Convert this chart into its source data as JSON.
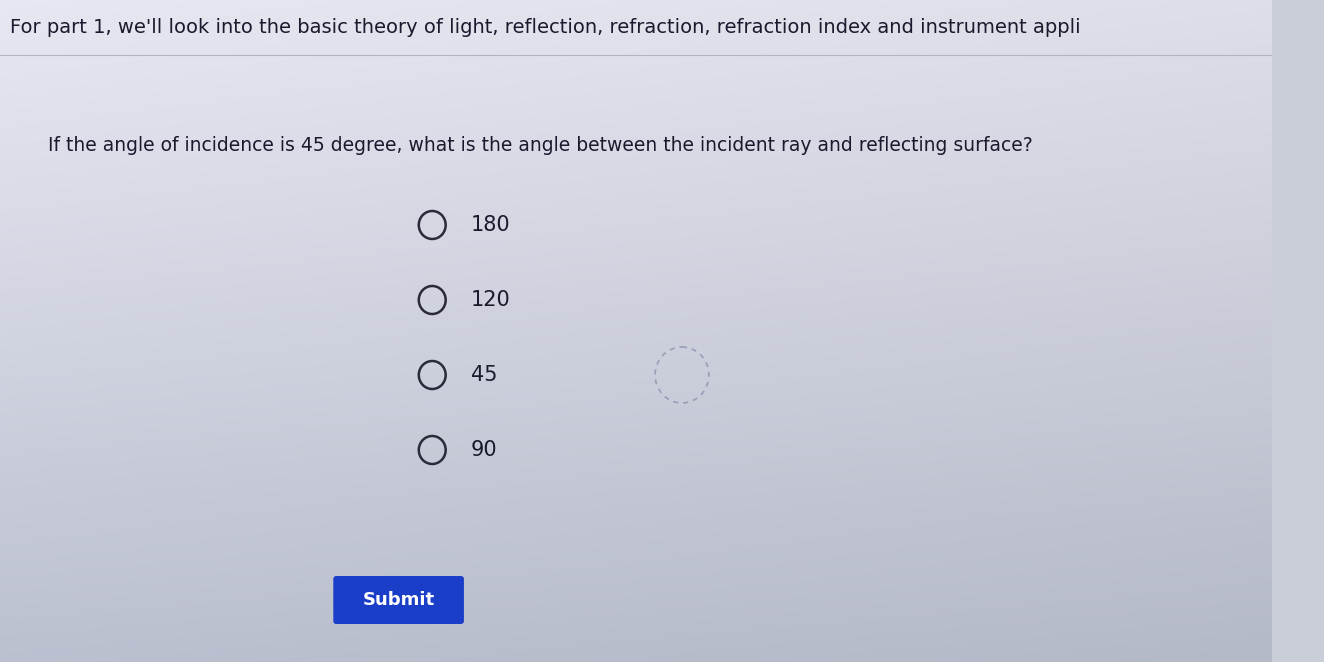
{
  "header_text": "For part 1, we'll look into the basic theory of light, reflection, refraction, refraction index and instrument appli",
  "question_text": "If the angle of incidence is 45 degree, what is the angle between the incident ray and reflecting surface?",
  "options": [
    "180",
    "120",
    "45",
    "90"
  ],
  "submit_label": "Submit",
  "bg_top_color": "#dde0e8",
  "bg_bottom_color": "#a8afc0",
  "header_text_color": "#1a1a2e",
  "question_text_color": "#1a1a2e",
  "option_text_color": "#1a1a2e",
  "circle_edge_color": "#2a2a3a",
  "submit_bg": "#1a3ec8",
  "submit_text_color": "#ffffff",
  "header_fontsize": 14,
  "question_fontsize": 13.5,
  "option_fontsize": 15,
  "submit_fontsize": 13
}
